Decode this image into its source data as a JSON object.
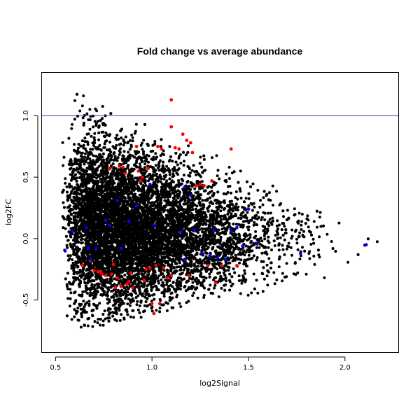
{
  "chart_data": {
    "type": "scatter",
    "title": "Fold change vs average abundance",
    "xlabel": "log2Signal",
    "ylabel": "log2FC",
    "xlim": [
      0.43,
      2.28
    ],
    "ylim": [
      -0.93,
      1.35
    ],
    "x_ticks": [
      0.5,
      1.0,
      1.5,
      2.0
    ],
    "x_tick_labels": [
      "0.5",
      "1.0",
      "1.5",
      "2.0"
    ],
    "y_ticks": [
      -0.5,
      0.0,
      0.5,
      1.0
    ],
    "y_tick_labels": [
      "-0.5",
      "0.0",
      "0.5",
      "1.0"
    ],
    "grid": false,
    "reference_lines": [
      {
        "axis": "y",
        "value": 1.0,
        "color": "#3333cc"
      }
    ],
    "colors": {
      "background_points": "#000000",
      "red_points": "#ff0000",
      "blue_points": "#0000ff"
    },
    "series": [
      {
        "color": "#ff0000",
        "points": [
          [
            0.64,
            -0.22
          ],
          [
            0.68,
            -0.18
          ],
          [
            0.7,
            -0.26
          ],
          [
            0.72,
            -0.27
          ],
          [
            0.73,
            -0.27
          ],
          [
            0.74,
            -0.29
          ],
          [
            0.76,
            -0.3
          ],
          [
            0.78,
            0.57
          ],
          [
            0.79,
            -0.29
          ],
          [
            0.8,
            -0.21
          ],
          [
            0.81,
            -0.4
          ],
          [
            0.82,
            -0.32
          ],
          [
            0.83,
            0.59
          ],
          [
            0.84,
            -0.39
          ],
          [
            0.85,
            0.58
          ],
          [
            0.86,
            0.53
          ],
          [
            0.87,
            -0.37
          ],
          [
            0.88,
            -0.35
          ],
          [
            0.89,
            -0.28
          ],
          [
            0.9,
            -0.4
          ],
          [
            0.92,
            0.75
          ],
          [
            0.93,
            0.55
          ],
          [
            0.94,
            0.47
          ],
          [
            0.95,
            0.5
          ],
          [
            0.96,
            -0.34
          ],
          [
            0.97,
            -0.25
          ],
          [
            0.98,
            0.57
          ],
          [
            0.99,
            -0.24
          ],
          [
            1.0,
            -0.53
          ],
          [
            1.01,
            -0.61
          ],
          [
            1.02,
            -0.22
          ],
          [
            1.03,
            0.75
          ],
          [
            1.04,
            -0.53
          ],
          [
            1.05,
            0.73
          ],
          [
            1.06,
            -0.24
          ],
          [
            1.08,
            -0.32
          ],
          [
            1.1,
            1.13
          ],
          [
            1.1,
            0.91
          ],
          [
            1.12,
            0.74
          ],
          [
            1.14,
            0.73
          ],
          [
            1.16,
            0.85
          ],
          [
            1.18,
            0.8
          ],
          [
            1.2,
            0.78
          ],
          [
            1.21,
            0.7
          ],
          [
            1.23,
            0.43
          ],
          [
            1.25,
            0.44
          ],
          [
            1.27,
            0.43
          ],
          [
            1.29,
            -0.22
          ],
          [
            1.31,
            0.47
          ],
          [
            1.33,
            -0.36
          ],
          [
            1.36,
            -0.22
          ],
          [
            1.41,
            0.73
          ],
          [
            1.44,
            -0.22
          ],
          [
            1.1,
            -0.3
          ],
          [
            1.19,
            -0.3
          ]
        ]
      },
      {
        "color": "#0000ff",
        "points": [
          [
            0.55,
            -0.1
          ],
          [
            0.59,
            0.06
          ],
          [
            0.66,
            0.09
          ],
          [
            0.67,
            -0.08
          ],
          [
            0.68,
            -0.17
          ],
          [
            0.71,
            -0.08
          ],
          [
            0.76,
            0.15
          ],
          [
            0.78,
            0.11
          ],
          [
            0.82,
            0.31
          ],
          [
            0.84,
            -0.08
          ],
          [
            0.88,
            0.14
          ],
          [
            0.92,
            0.27
          ],
          [
            0.99,
            0.44
          ],
          [
            1.01,
            0.11
          ],
          [
            1.15,
            0.06
          ],
          [
            1.17,
            0.42
          ],
          [
            1.17,
            -0.17
          ],
          [
            1.2,
            0.35
          ],
          [
            1.22,
            0.07
          ],
          [
            1.26,
            -0.12
          ],
          [
            1.3,
            -0.14
          ],
          [
            1.32,
            0.07
          ],
          [
            1.34,
            -0.16
          ],
          [
            1.38,
            -0.17
          ],
          [
            1.41,
            0.06
          ],
          [
            1.44,
            0.09
          ],
          [
            1.47,
            -0.06
          ],
          [
            1.5,
            0.24
          ],
          [
            1.54,
            -0.04
          ],
          [
            1.77,
            -0.12
          ],
          [
            2.11,
            -0.05
          ]
        ]
      }
    ]
  }
}
